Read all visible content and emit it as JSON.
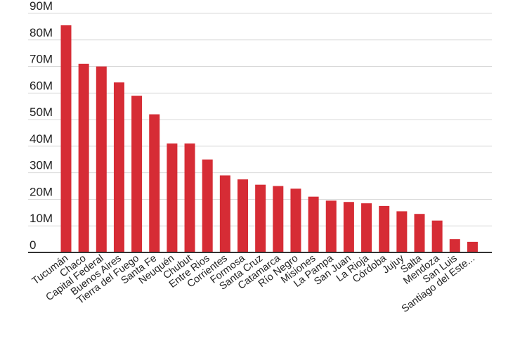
{
  "chart_data": {
    "type": "bar",
    "categories": [
      "Tucumán",
      "Chaco",
      "Capital Federal",
      "Buenos Aires",
      "Tierra del Fuego",
      "Santa Fe",
      "Neuquén",
      "Chubut",
      "Entre Rios",
      "Corrientes",
      "Formosa",
      "Santa Cruz",
      "Catamarca",
      "Río Negro",
      "Misiones",
      "La Pampa",
      "San Juan",
      "La Rioja",
      "Córdoba",
      "Jujuy",
      "Salta",
      "Mendoza",
      "San Luis",
      "Santiago del Este..."
    ],
    "values": [
      85.5,
      71,
      70,
      64,
      59,
      52,
      41,
      41,
      35,
      29,
      27.5,
      25.5,
      25,
      24,
      21,
      19.5,
      19,
      18.5,
      17.5,
      15.5,
      14.5,
      12,
      5,
      4
    ],
    "ylim": [
      0,
      90
    ],
    "yticks": [
      "0",
      "10M",
      "20M",
      "30M",
      "40M",
      "50M",
      "60M",
      "70M",
      "80M",
      "90M"
    ],
    "grid": true,
    "colors": {
      "bar": "#d62c35",
      "grid": "#d9d9d9",
      "axis": "#333333"
    }
  }
}
